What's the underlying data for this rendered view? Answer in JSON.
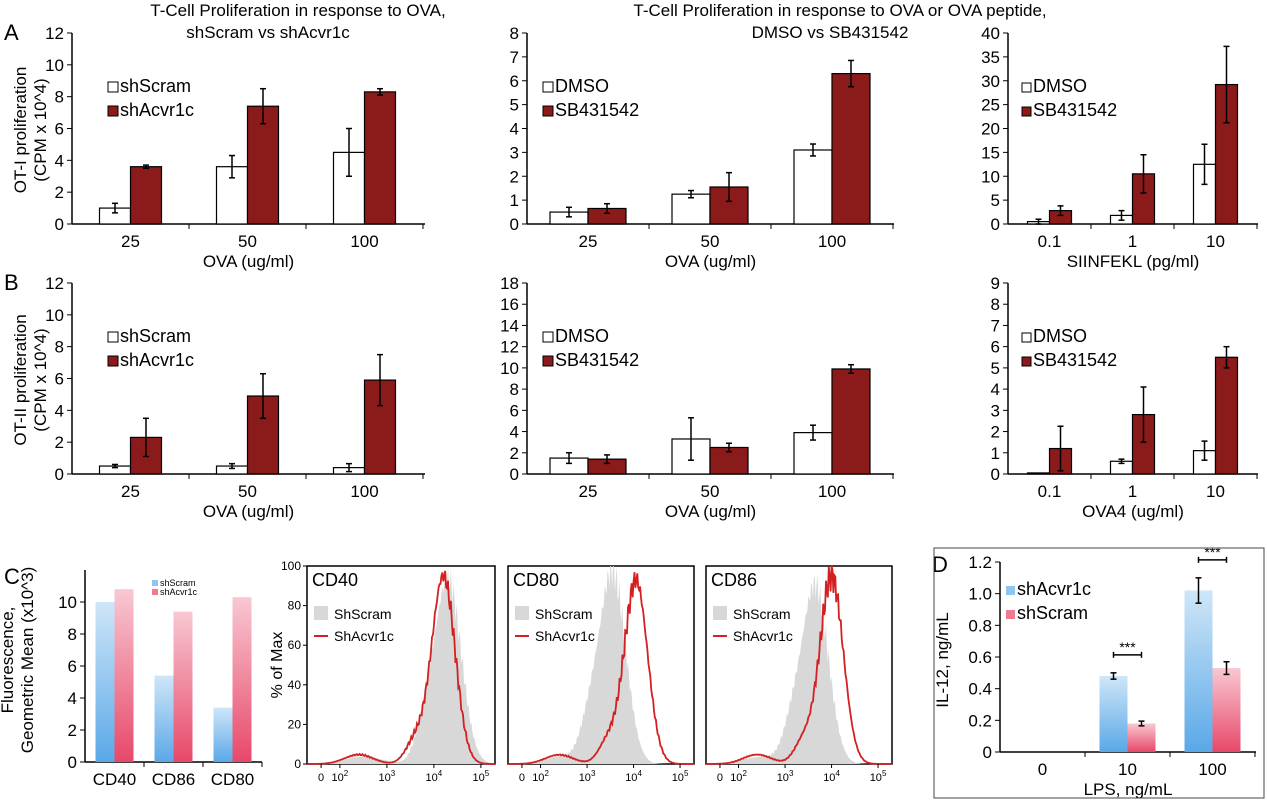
{
  "headers": {
    "left_line1": "T-Cell Proliferation in response to OVA,",
    "left_line2": "shScram vs shAcvr1c",
    "mid_line1": "T-Cell Proliferation in response to OVA or OVA peptide,",
    "mid_line2": "DMSO vs SB431542"
  },
  "panel_letters": {
    "a": "A",
    "b": "B",
    "c": "C",
    "d": "D"
  },
  "colors": {
    "white_bar": "#ffffff",
    "dark_red": "#8b1a1a",
    "light_blue": "#8ec6f0",
    "pink": "#f07a90",
    "histogram_red": "#d42020",
    "histogram_gray": "#d8d8d8"
  },
  "chart_data": [
    {
      "id": "A1",
      "type": "bar",
      "categories": [
        "25",
        "50",
        "100"
      ],
      "series": [
        {
          "name": "shScram",
          "values": [
            1.0,
            3.6,
            4.5
          ],
          "errors": [
            0.3,
            0.7,
            1.5
          ]
        },
        {
          "name": "shAcvr1c",
          "values": [
            3.6,
            7.4,
            8.3
          ],
          "errors": [
            0.1,
            1.1,
            0.2
          ]
        }
      ],
      "xlabel": "OVA (ug/ml)",
      "ylabel": "OT-I proliferation",
      "ylabel2": "(CPM x 10^4)",
      "ylim": [
        0,
        12
      ],
      "yticks": [
        "0",
        "2",
        "4",
        "6",
        "8",
        "10",
        "12"
      ],
      "legend": "upper-left"
    },
    {
      "id": "A2",
      "type": "bar",
      "categories": [
        "25",
        "50",
        "100"
      ],
      "series": [
        {
          "name": "DMSO",
          "values": [
            0.5,
            1.25,
            3.1
          ],
          "errors": [
            0.2,
            0.15,
            0.25
          ]
        },
        {
          "name": "SB431542",
          "values": [
            0.65,
            1.55,
            6.3
          ],
          "errors": [
            0.2,
            0.6,
            0.55
          ]
        }
      ],
      "xlabel": "OVA (ug/ml)",
      "ylim": [
        0,
        8
      ],
      "yticks": [
        "0",
        "1",
        "2",
        "3",
        "4",
        "5",
        "6",
        "7",
        "8"
      ],
      "legend": "upper-left"
    },
    {
      "id": "A3",
      "type": "bar",
      "categories": [
        "0.1",
        "1",
        "10"
      ],
      "series": [
        {
          "name": "DMSO",
          "values": [
            0.5,
            1.8,
            12.5
          ],
          "errors": [
            0.5,
            1.0,
            4.2
          ]
        },
        {
          "name": "SB431542",
          "values": [
            2.8,
            10.5,
            29.2
          ],
          "errors": [
            1.0,
            4.0,
            8.0
          ]
        }
      ],
      "xlabel": "SIINFEKL (pg/ml)",
      "ylim": [
        0,
        40
      ],
      "yticks": [
        "0",
        "5",
        "10",
        "15",
        "20",
        "25",
        "30",
        "35",
        "40"
      ],
      "legend": "upper-left"
    },
    {
      "id": "B1",
      "type": "bar",
      "categories": [
        "25",
        "50",
        "100"
      ],
      "series": [
        {
          "name": "shScram",
          "values": [
            0.5,
            0.5,
            0.4
          ],
          "errors": [
            0.1,
            0.15,
            0.25
          ]
        },
        {
          "name": "shAcvr1c",
          "values": [
            2.3,
            4.9,
            5.9
          ],
          "errors": [
            1.2,
            1.4,
            1.6
          ]
        }
      ],
      "xlabel": "OVA (ug/ml)",
      "ylabel": "OT-II proliferation",
      "ylabel2": "(CPM x 10^4)",
      "ylim": [
        0,
        12
      ],
      "yticks": [
        "0",
        "2",
        "4",
        "6",
        "8",
        "10",
        "12"
      ],
      "legend": "upper-left"
    },
    {
      "id": "B2",
      "type": "bar",
      "categories": [
        "25",
        "50",
        "100"
      ],
      "series": [
        {
          "name": "DMSO",
          "values": [
            1.5,
            3.3,
            3.9
          ],
          "errors": [
            0.5,
            2.0,
            0.7
          ]
        },
        {
          "name": "SB431542",
          "values": [
            1.4,
            2.5,
            9.9
          ],
          "errors": [
            0.4,
            0.4,
            0.4
          ]
        }
      ],
      "xlabel": "OVA (ug/ml)",
      "ylim": [
        0,
        18
      ],
      "yticks": [
        "0",
        "2",
        "4",
        "6",
        "8",
        "10",
        "12",
        "14",
        "16",
        "18"
      ],
      "legend": "upper-left"
    },
    {
      "id": "B3",
      "type": "bar",
      "categories": [
        "0.1",
        "1",
        "10"
      ],
      "series": [
        {
          "name": "DMSO",
          "values": [
            0.05,
            0.6,
            1.1
          ],
          "errors": [
            0.0,
            0.1,
            0.45
          ]
        },
        {
          "name": "SB431542",
          "values": [
            1.2,
            2.8,
            5.5
          ],
          "errors": [
            1.05,
            1.3,
            0.5
          ]
        }
      ],
      "xlabel": "OVA4 (ug/ml)",
      "ylim": [
        0,
        9
      ],
      "yticks": [
        "0",
        "1",
        "2",
        "3",
        "4",
        "5",
        "6",
        "7",
        "8",
        "9"
      ],
      "legend": "upper-left"
    },
    {
      "id": "C1",
      "type": "bar",
      "categories": [
        "CD40",
        "CD86",
        "CD80"
      ],
      "series": [
        {
          "name": "shScram",
          "values": [
            10.0,
            5.4,
            3.4
          ]
        },
        {
          "name": "shAcvr1c",
          "values": [
            10.8,
            9.4,
            10.3
          ]
        }
      ],
      "ylabel": "Fluorescence,",
      "ylabel2": "Geometric Mean (x10^3)",
      "ylim": [
        0,
        12
      ],
      "yticks": [
        "0",
        "2",
        "4",
        "6",
        "8",
        "10"
      ],
      "legend": "top-right"
    },
    {
      "id": "C-histograms",
      "type": "area",
      "panels": [
        {
          "title": "CD40",
          "gray_peak_log": 4.3,
          "red_peak_log": 4.2,
          "red_peak": 95,
          "gray_peak": 93
        },
        {
          "title": "CD80",
          "gray_peak_log": 3.55,
          "red_peak_log": 4.05,
          "red_peak": 93,
          "gray_peak": 97
        },
        {
          "title": "CD86",
          "gray_peak_log": 3.65,
          "red_peak_log": 4.0,
          "red_peak": 95,
          "gray_peak": 90
        }
      ],
      "series_names": [
        "ShScram",
        "ShAcvr1c"
      ],
      "ylabel": "% of Max",
      "ylim": [
        0,
        100
      ],
      "yticks": [
        "0",
        "20",
        "40",
        "60",
        "80",
        "100"
      ],
      "xticks": [
        {
          "label": "0",
          "log": null
        },
        {
          "label": "10",
          "sup": "2",
          "log": 2
        },
        {
          "label": "10",
          "sup": "3",
          "log": 3
        },
        {
          "label": "10",
          "sup": "4",
          "log": 4
        },
        {
          "label": "10",
          "sup": "5",
          "log": 5
        }
      ]
    },
    {
      "id": "D1",
      "type": "bar",
      "categories": [
        "0",
        "10",
        "100"
      ],
      "series": [
        {
          "name": "shAcvr1c",
          "values": [
            0,
            0.48,
            1.02
          ],
          "errors": [
            0,
            0.02,
            0.08
          ]
        },
        {
          "name": "shScram",
          "values": [
            0,
            0.18,
            0.53
          ],
          "errors": [
            0,
            0.015,
            0.04
          ]
        }
      ],
      "xlabel": "LPS, ng/mL",
      "ylabel": "IL-12, ng/mL",
      "ylim": [
        0,
        1.2
      ],
      "yticks": [
        "0",
        "0.2",
        "0.4",
        "0.6",
        "0.8",
        "1.0",
        "1.2"
      ],
      "significance": [
        "***",
        "***"
      ],
      "legend": "upper-left"
    }
  ]
}
